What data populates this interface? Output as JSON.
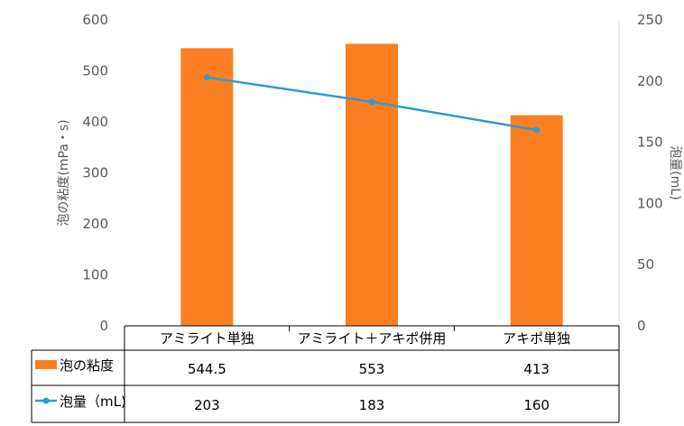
{
  "colors": {
    "bar": "#FD7F24",
    "line": "#2E9BD6",
    "grid": "#D9D9D9",
    "table_border": "#000000"
  },
  "chart_data": {
    "type": "bar",
    "categories": [
      "アミライト単独",
      "アミライト＋アキポ併用",
      "アキポ単独"
    ],
    "series": [
      {
        "name": "泡の粘度",
        "type": "bar",
        "axis": "left",
        "values": [
          544.5,
          553,
          413
        ]
      },
      {
        "name": "泡量（mL)",
        "type": "line",
        "axis": "right",
        "values": [
          203,
          183,
          160
        ]
      }
    ],
    "y_left": {
      "label": "泡の粘度(mPa・s)",
      "ylim": [
        0,
        600
      ],
      "ticks": [
        "0",
        "100",
        "200",
        "300",
        "400",
        "500",
        "600"
      ]
    },
    "y_right": {
      "label": "泡量(mL)",
      "ylim": [
        0,
        250
      ],
      "ticks": [
        "0",
        "50",
        "100",
        "150",
        "200",
        "250"
      ]
    },
    "data_table": {
      "rows": [
        {
          "legend": "泡の粘度",
          "values": [
            "544.5",
            "553",
            "413"
          ]
        },
        {
          "legend": "泡量（mL)",
          "values": [
            "203",
            "183",
            "160"
          ]
        }
      ]
    },
    "grid": false
  }
}
